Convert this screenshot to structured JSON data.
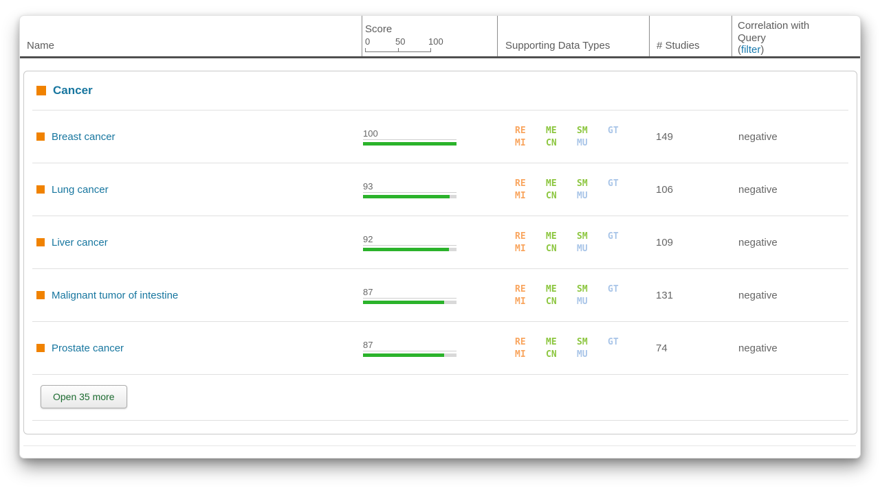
{
  "header": {
    "name_col": "Name",
    "score_col": {
      "label": "Score",
      "tick0": "0",
      "tick50": "50",
      "tick100": "100"
    },
    "supporting_col": "Supporting Data Types",
    "studies_col": "# Studies",
    "correlation_col": {
      "line1": "Correlation with",
      "line2": "Query",
      "open": "(",
      "filter": "filter",
      "close": ")"
    }
  },
  "group": {
    "label": "Cancer"
  },
  "rows": [
    {
      "name": "Breast cancer",
      "score": "100",
      "score_value": 100,
      "studies": "149",
      "correlation": "negative"
    },
    {
      "name": "Lung cancer",
      "score": "93",
      "score_value": 93,
      "studies": "106",
      "correlation": "negative"
    },
    {
      "name": "Liver cancer",
      "score": "92",
      "score_value": 92,
      "studies": "109",
      "correlation": "negative"
    },
    {
      "name": "Malignant tumor of intestine",
      "score": "87",
      "score_value": 87,
      "studies": "131",
      "correlation": "negative"
    },
    {
      "name": "Prostate cancer",
      "score": "87",
      "score_value": 87,
      "studies": "74",
      "correlation": "negative"
    }
  ],
  "badges": {
    "items": [
      {
        "name": "re",
        "label": "RE",
        "color": "#f9a55e"
      },
      {
        "name": "me",
        "label": "ME",
        "color": "#8cc63f"
      },
      {
        "name": "sm",
        "label": "SM",
        "color": "#8cc63f"
      },
      {
        "name": "gt",
        "label": "GT",
        "color": "#a9c5e8"
      },
      {
        "name": "mi",
        "label": "MI",
        "color": "#f9a55e"
      },
      {
        "name": "cn",
        "label": "CN",
        "color": "#8cc63f"
      },
      {
        "name": "mu",
        "label": "MU",
        "color": "#a9c5e8"
      }
    ]
  },
  "footer": {
    "open_more": "Open 35 more"
  },
  "colors": {
    "accent_orange": "#f08200",
    "link_blue": "#17769f",
    "bar_green": "#2bb32b",
    "button_green": "#1c6b30",
    "filter_blue": "#1879ad"
  }
}
